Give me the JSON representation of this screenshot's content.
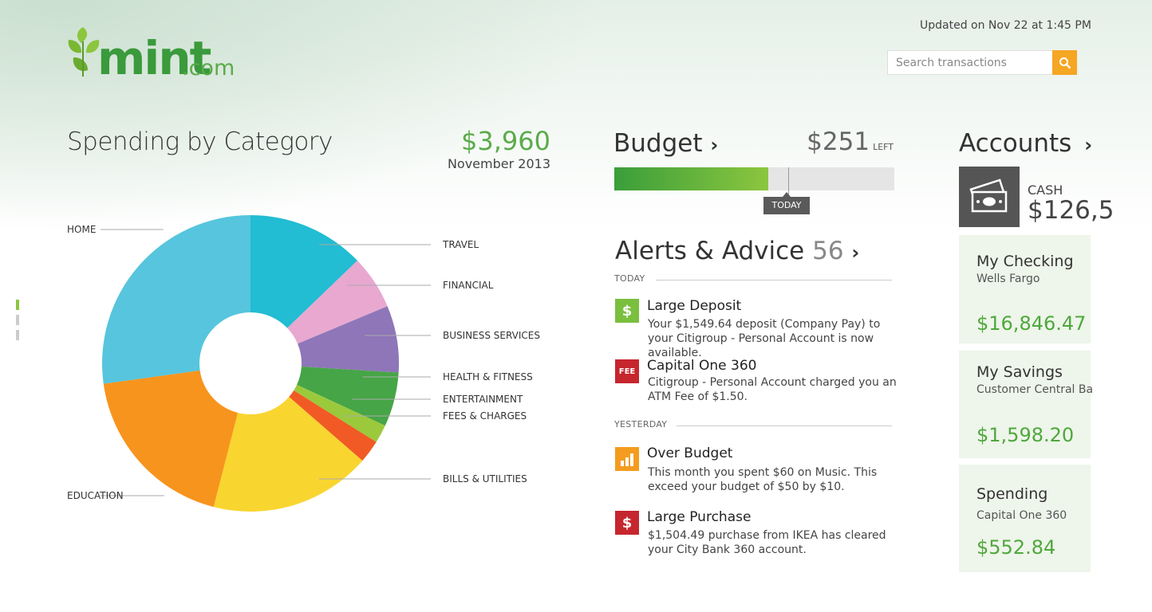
{
  "header": {
    "logo": "mint",
    "logo_suffix": ".com",
    "updated": "Updated on Nov 22 at 1:45 PM",
    "search_placeholder": "Search transactions",
    "search_icon": "search-icon"
  },
  "spending": {
    "title": "Spending by Category",
    "total": "$3,960",
    "month": "November 2013"
  },
  "chart_data": {
    "type": "pie",
    "donut": true,
    "categories": [
      "TRAVEL",
      "FINANCIAL",
      "BUSINESS SERVICES",
      "HEALTH & FITNESS",
      "ENTERTAINMENT",
      "FEES & CHARGES",
      "BILLS & UTILITIES",
      "EDUCATION",
      "HOME"
    ],
    "values": [
      12.8,
      5.9,
      7.3,
      5.9,
      2.0,
      2.5,
      17.6,
      18.8,
      27.2
    ],
    "colors": [
      "#22bcd3",
      "#e8a8d0",
      "#8e76b8",
      "#46a546",
      "#9bc93c",
      "#f15a24",
      "#f9d530",
      "#f7941d",
      "#56c5dd"
    ],
    "legend": "leader lines"
  },
  "budget": {
    "title": "Budget",
    "amount": "$251",
    "left_label": "LEFT",
    "spent_fraction": 0.55,
    "today_fraction": 0.62,
    "today_label": "TODAY"
  },
  "alerts": {
    "title": "Alerts & Advice",
    "count": "56",
    "today_label": "TODAY",
    "yesterday_label": "YESTERDAY",
    "items": [
      {
        "icon": "dollar-icon",
        "icon_text": "$",
        "color": "#7bbf3e",
        "title": "Large Deposit",
        "body": "Your $1,549.64 deposit (Company Pay) to your Citigroup - Personal Account is now available."
      },
      {
        "icon": "fee-icon",
        "icon_text": "FEE",
        "color": "#c6262e",
        "title": "Capital One 360",
        "body": "Citigroup - Personal Account charged you an ATM Fee of $1.50."
      },
      {
        "icon": "bar-chart-icon",
        "icon_text": "",
        "color": "#f39c1f",
        "title": "Over Budget",
        "body": "This month you spent $60 on Music. This exceed your budget of $50 by $10."
      },
      {
        "icon": "dollar-icon",
        "icon_text": "$",
        "color": "#c6262e",
        "title": "Large Purchase",
        "body": "$1,504.49 purchase from IKEA has cleared your City Bank 360 account."
      }
    ]
  },
  "accounts": {
    "title": "Accounts",
    "cash_label": "CASH",
    "cash_amount": "$126,5",
    "tiles": [
      {
        "name": "My Checking",
        "sub": "Wells Fargo",
        "amount": "$16,846.47"
      },
      {
        "name": "My Savings",
        "sub": "Customer Central Ba",
        "amount": "$1,598.20"
      },
      {
        "name": "Spending",
        "sub": "Capital One 360",
        "amount": "$552.84"
      }
    ]
  }
}
